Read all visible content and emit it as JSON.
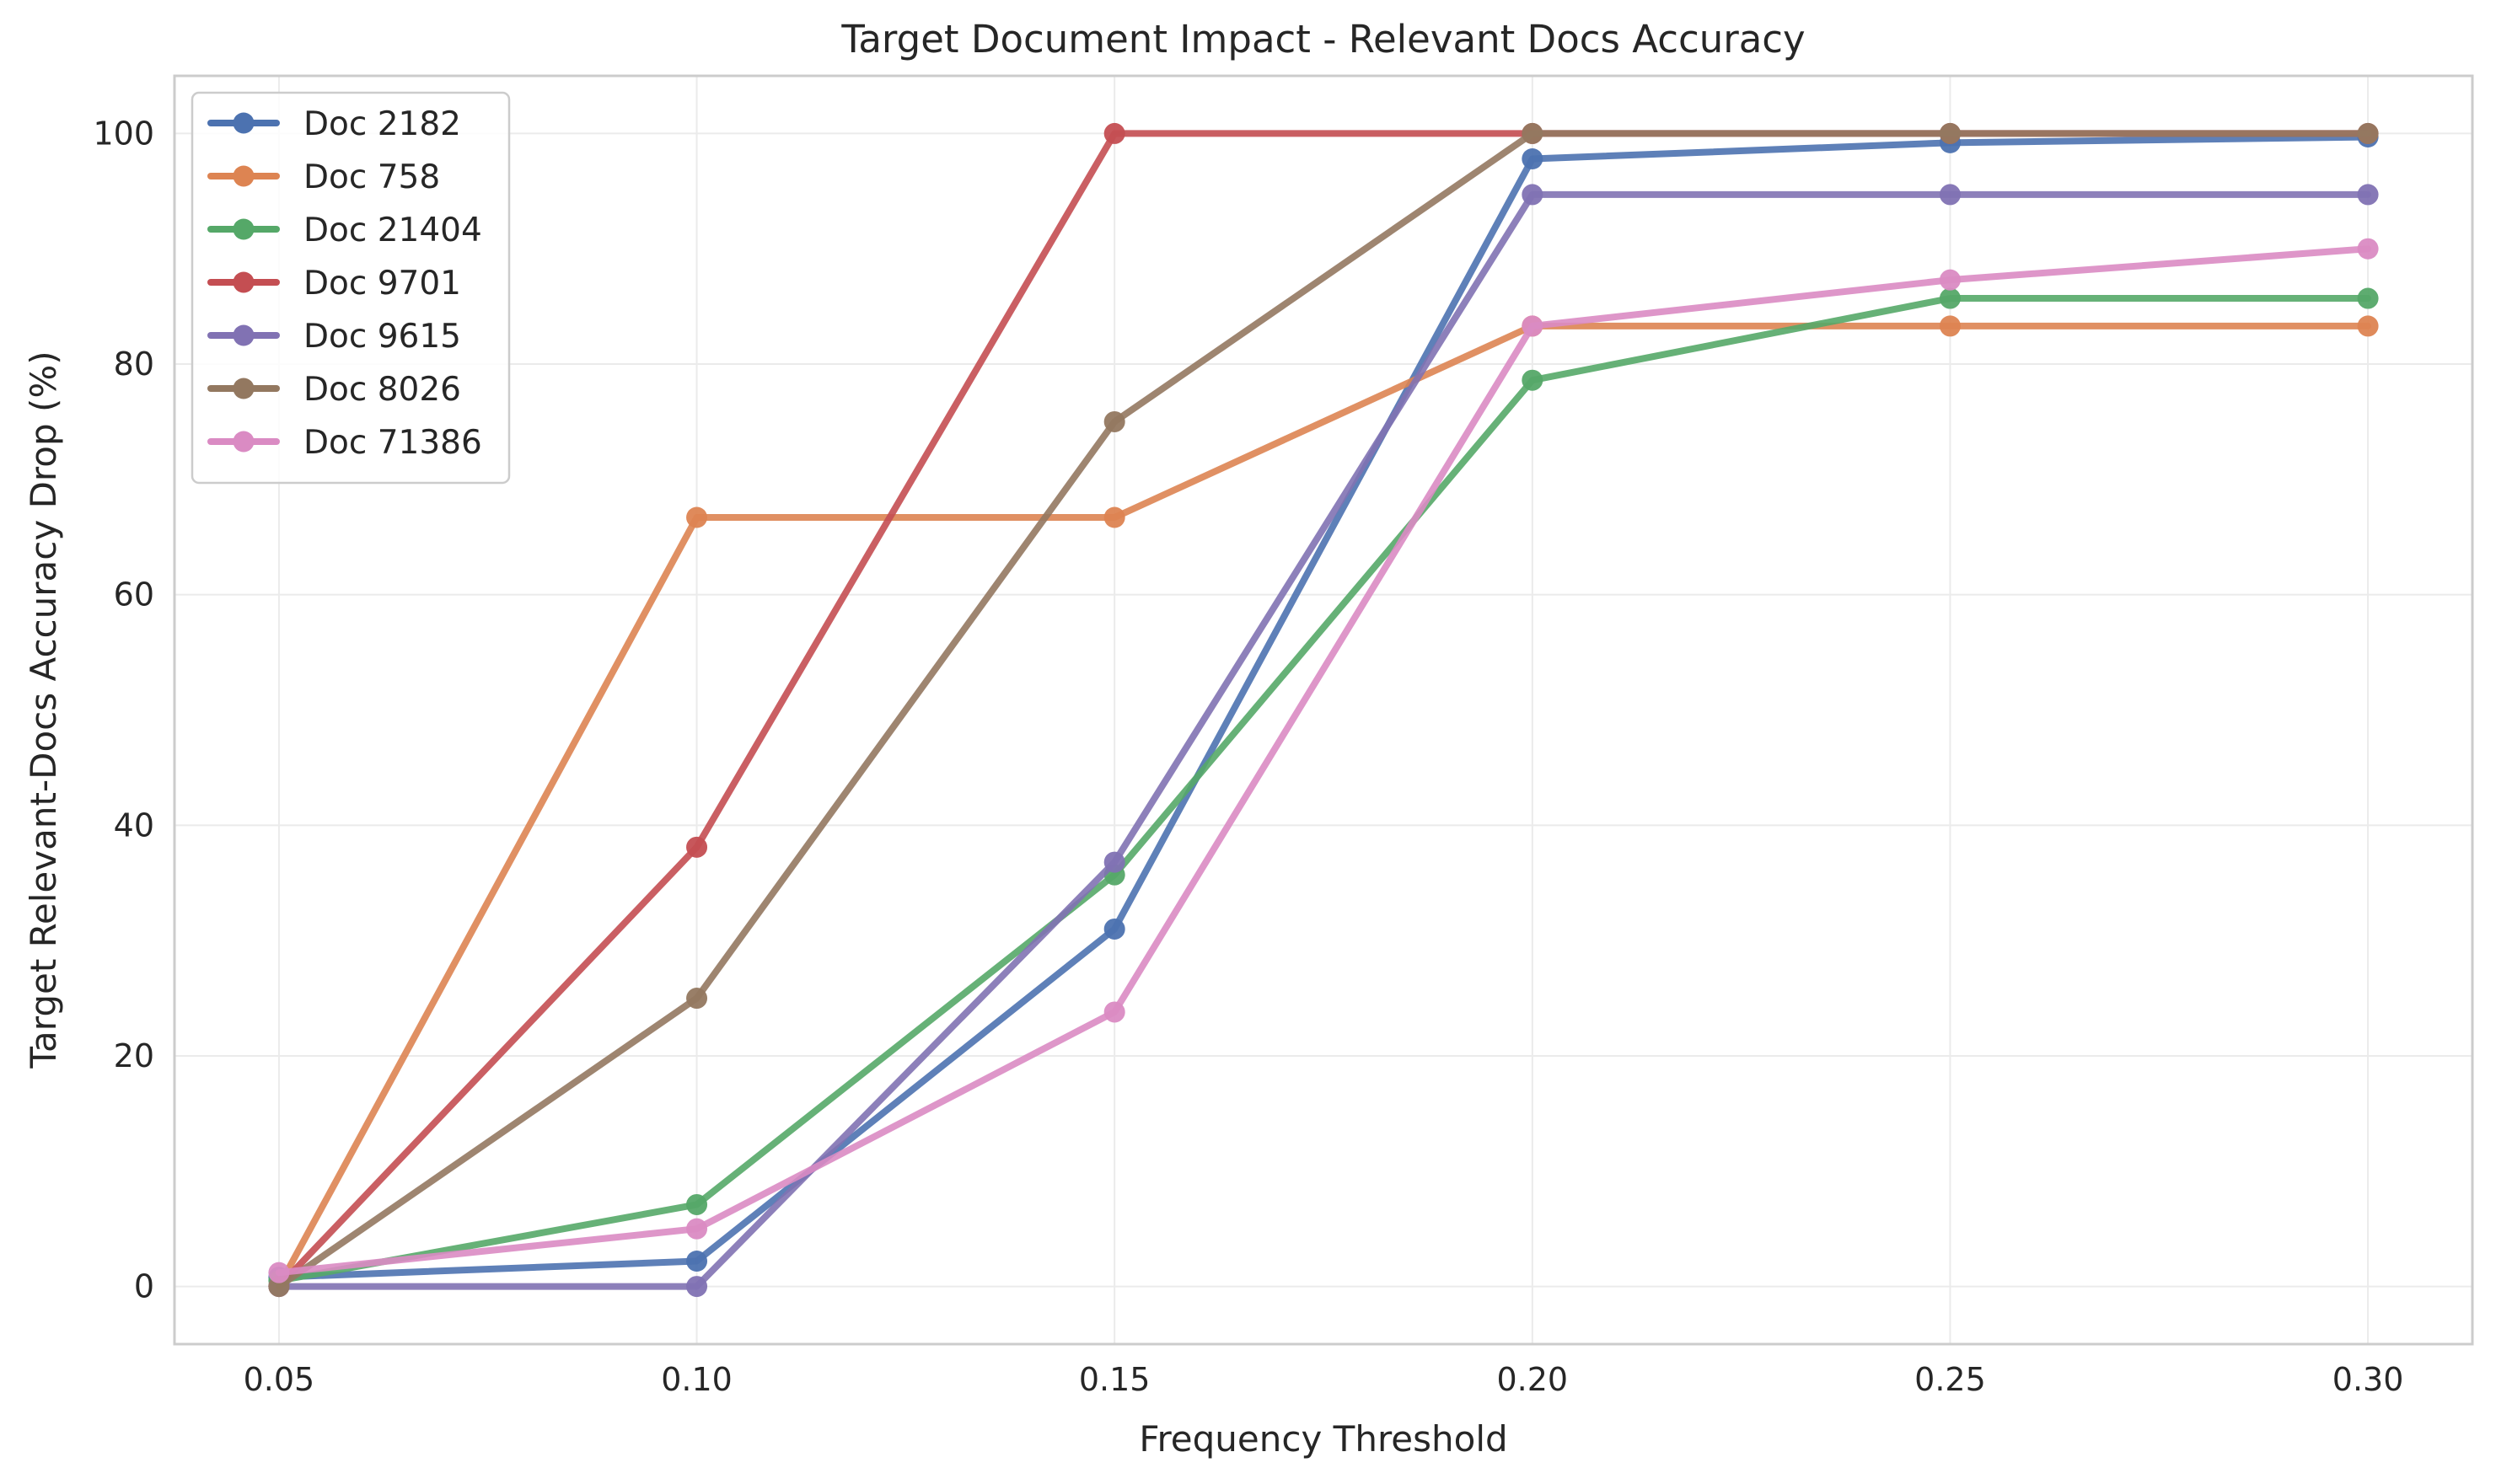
{
  "chart_data": {
    "type": "line",
    "title": "Target Document Impact - Relevant Docs Accuracy",
    "xlabel": "Frequency Threshold",
    "ylabel": "Target Relevant-Docs Accuracy Drop (%)",
    "x": [
      0.05,
      0.1,
      0.15,
      0.2,
      0.25,
      0.3
    ],
    "x_tick_labels": [
      "0.05",
      "0.10",
      "0.15",
      "0.20",
      "0.25",
      "0.30"
    ],
    "y_ticks": [
      0,
      20,
      40,
      60,
      80,
      100
    ],
    "y_tick_labels": [
      "0",
      "20",
      "40",
      "60",
      "80",
      "100"
    ],
    "xlim": [
      0.0375,
      0.3125
    ],
    "ylim": [
      -5,
      105
    ],
    "grid": true,
    "legend_position": "top-left",
    "series": [
      {
        "name": "Doc 2182",
        "color": "#4c72b0",
        "values": [
          0.8,
          2.2,
          31.0,
          97.8,
          99.2,
          99.7
        ]
      },
      {
        "name": "Doc 758",
        "color": "#dd8452",
        "values": [
          0,
          66.7,
          66.7,
          83.3,
          83.3,
          83.3
        ]
      },
      {
        "name": "Doc 21404",
        "color": "#55a868",
        "values": [
          0.5,
          7.1,
          35.7,
          78.6,
          85.7,
          85.7
        ]
      },
      {
        "name": "Doc 9701",
        "color": "#c44e52",
        "values": [
          0,
          38.1,
          100,
          100,
          100,
          100
        ]
      },
      {
        "name": "Doc 9615",
        "color": "#8172b3",
        "values": [
          0,
          0,
          36.8,
          94.7,
          94.7,
          94.7
        ]
      },
      {
        "name": "Doc 8026",
        "color": "#937860",
        "values": [
          0,
          25.0,
          75.0,
          100,
          100,
          100
        ]
      },
      {
        "name": "Doc 71386",
        "color": "#da8bc3",
        "values": [
          1.2,
          5.0,
          23.8,
          83.3,
          87.3,
          90.0
        ]
      }
    ]
  }
}
